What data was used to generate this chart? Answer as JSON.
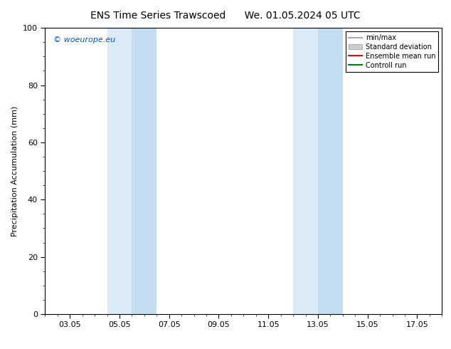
{
  "title_left": "ENS Time Series Trawscoed",
  "title_right": "We. 01.05.2024 05 UTC",
  "ylabel": "Precipitation Accumulation (mm)",
  "watermark": "© woeurope.eu",
  "xlim_start": 1.0,
  "xlim_end": 17.0,
  "ylim": [
    0,
    100
  ],
  "x_ticks": [
    2,
    4,
    6,
    8,
    10,
    12,
    14,
    16
  ],
  "x_tick_labels": [
    "03.05",
    "05.05",
    "07.05",
    "09.05",
    "11.05",
    "13.05",
    "15.05",
    "17.05"
  ],
  "y_ticks": [
    0,
    20,
    40,
    60,
    80,
    100
  ],
  "shade_regions": [
    {
      "x_start": 3.5,
      "x_end": 5.5,
      "color": "#daeaf6"
    },
    {
      "x_start": 11.0,
      "x_end": 13.0,
      "color": "#daeaf6"
    }
  ],
  "shade_inner_regions": [
    {
      "x_start": 4.5,
      "x_end": 5.5,
      "color": "#c5ddf0"
    },
    {
      "x_start": 12.0,
      "x_end": 13.0,
      "color": "#c5ddf0"
    }
  ],
  "legend_items": [
    {
      "label": "min/max",
      "color": "#aaaaaa",
      "lw": 1.5,
      "style": "solid",
      "type": "line"
    },
    {
      "label": "Standard deviation",
      "color": "#cccccc",
      "lw": 8,
      "style": "solid",
      "type": "patch"
    },
    {
      "label": "Ensemble mean run",
      "color": "#ff0000",
      "lw": 1.5,
      "style": "solid",
      "type": "line"
    },
    {
      "label": "Controll run",
      "color": "#008000",
      "lw": 1.5,
      "style": "solid",
      "type": "line"
    }
  ],
  "watermark_color": "#0055cc",
  "background_color": "#ffffff",
  "title_fontsize": 10,
  "label_fontsize": 8,
  "tick_fontsize": 8,
  "legend_fontsize": 7
}
